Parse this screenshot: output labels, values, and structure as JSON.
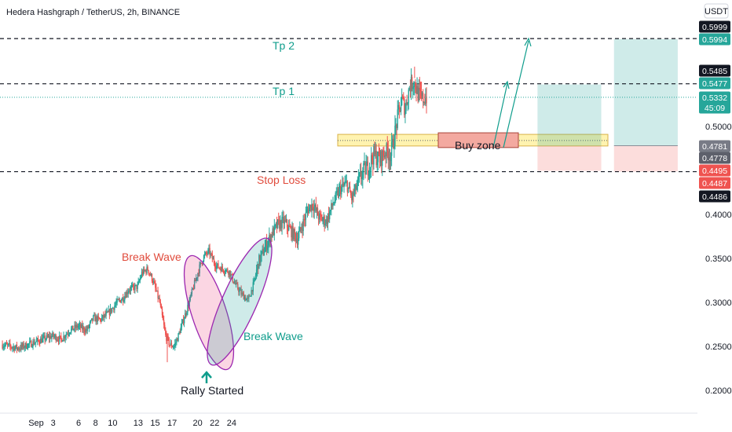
{
  "chart_data": {
    "type": "candlestick",
    "title": "Hedera Hashgraph / TetherUS, 2h, BINANCE",
    "currency": "USDT",
    "ylim": [
      0.18,
      0.62
    ],
    "y_ticks": [
      "0.5000",
      "0.4000",
      "0.3500",
      "0.3000",
      "0.2500",
      "0.2000"
    ],
    "x_ticks": [
      "Sep",
      "3",
      "6",
      "8",
      "10",
      "13",
      "15",
      "17",
      "20",
      "22",
      "24"
    ],
    "colors": {
      "up": "#26a69a",
      "down": "#ef5350",
      "accent": "#0f9d8c",
      "stop": "#e04b3c"
    },
    "path": [
      [
        0,
        0.252
      ],
      [
        2,
        0.248
      ],
      [
        4,
        0.255
      ],
      [
        6,
        0.262
      ],
      [
        7,
        0.258
      ],
      [
        8,
        0.268
      ],
      [
        9,
        0.273
      ],
      [
        10,
        0.268
      ],
      [
        10.8,
        0.282
      ],
      [
        11.6,
        0.28
      ],
      [
        12.6,
        0.288
      ],
      [
        13.6,
        0.3
      ],
      [
        14.3,
        0.305
      ],
      [
        15,
        0.315
      ],
      [
        16,
        0.318
      ],
      [
        16.5,
        0.333
      ],
      [
        17.2,
        0.338
      ],
      [
        17.8,
        0.325
      ],
      [
        18.6,
        0.3
      ],
      [
        19.3,
        0.262
      ],
      [
        19.8,
        0.252
      ],
      [
        20.3,
        0.25
      ],
      [
        20.8,
        0.262
      ],
      [
        21.4,
        0.28
      ],
      [
        22,
        0.298
      ],
      [
        22.6,
        0.318
      ],
      [
        23.3,
        0.34
      ],
      [
        23.8,
        0.352
      ],
      [
        24.4,
        0.358
      ],
      [
        25.2,
        0.342
      ],
      [
        26,
        0.338
      ],
      [
        26.8,
        0.335
      ],
      [
        27.4,
        0.322
      ],
      [
        28.2,
        0.31
      ],
      [
        29,
        0.302
      ],
      [
        29.7,
        0.322
      ],
      [
        30.2,
        0.345
      ],
      [
        31,
        0.362
      ],
      [
        31.8,
        0.378
      ],
      [
        32.5,
        0.388
      ],
      [
        33.2,
        0.392
      ],
      [
        34,
        0.382
      ],
      [
        34.8,
        0.372
      ],
      [
        35.4,
        0.388
      ],
      [
        36,
        0.405
      ],
      [
        36.6,
        0.412
      ],
      [
        37.4,
        0.396
      ],
      [
        38.2,
        0.392
      ],
      [
        39,
        0.412
      ],
      [
        39.8,
        0.428
      ],
      [
        40.6,
        0.435
      ],
      [
        41.2,
        0.418
      ],
      [
        41.8,
        0.432
      ],
      [
        42.5,
        0.448
      ],
      [
        43.2,
        0.455
      ],
      [
        43.8,
        0.468
      ],
      [
        44.5,
        0.462
      ],
      [
        45.2,
        0.472
      ],
      [
        45.8,
        0.468
      ],
      [
        46.2,
        0.488
      ],
      [
        46.7,
        0.515
      ],
      [
        47.1,
        0.53
      ],
      [
        47.5,
        0.52
      ],
      [
        48,
        0.545
      ],
      [
        48.5,
        0.552
      ],
      [
        49,
        0.537
      ],
      [
        49.5,
        0.531
      ],
      [
        50,
        0.533
      ]
    ],
    "levels": [
      {
        "name": "Tp 2",
        "value": 0.5999,
        "tag": "0.5999"
      },
      {
        "name": "Tp 1",
        "value": 0.5485,
        "tag": "0.5485"
      },
      {
        "name": "Stop Loss",
        "value": 0.4486,
        "tag": "0.4486"
      }
    ],
    "buy_zone": {
      "label": "Buy zone",
      "low": 0.4778,
      "high": 0.491
    },
    "positions": [
      {
        "start": 59,
        "end": 66.5,
        "entry": 0.4778,
        "target": 0.5477,
        "stop": 0.4495
      },
      {
        "start": 68,
        "end": 75.5,
        "entry": 0.4781,
        "target": 0.5994,
        "stop": 0.4487
      }
    ],
    "price_tags": [
      {
        "value": 0.5999,
        "text": "0.5999",
        "color": "#131722"
      },
      {
        "value": 0.5994,
        "text": "0.5994",
        "color": "#26a69a"
      },
      {
        "value": 0.5485,
        "text": "0.5485",
        "color": "#131722"
      },
      {
        "value": 0.5477,
        "text": "0.5477",
        "color": "#26a69a"
      },
      {
        "value": 0.5332,
        "text": "0.5332",
        "color": "#26a69a",
        "sub": "45:09"
      },
      {
        "value": 0.4781,
        "text": "0.4781",
        "color": "#787b86"
      },
      {
        "value": 0.4778,
        "text": "0.4778",
        "color": "#5d606b"
      },
      {
        "value": 0.4495,
        "text": "0.4495",
        "color": "#ef5350"
      },
      {
        "value": 0.4487,
        "text": "0.4487",
        "color": "#ef5350"
      },
      {
        "value": 0.4486,
        "text": "0.4486",
        "color": "#131722"
      }
    ],
    "annotations": [
      {
        "text": "Tp 2",
        "color": "#0f9d8c"
      },
      {
        "text": "Tp 1",
        "color": "#0f9d8c"
      },
      {
        "text": "Stop Loss",
        "color": "#e04b3c"
      },
      {
        "text": "Break Wave",
        "color": "#e04b3c"
      },
      {
        "text": "Break Wave",
        "color": "#0f9d8c"
      },
      {
        "text": "Rally Started",
        "color": "#131722"
      },
      {
        "text": "Buy zone",
        "color": "#131722"
      }
    ]
  }
}
